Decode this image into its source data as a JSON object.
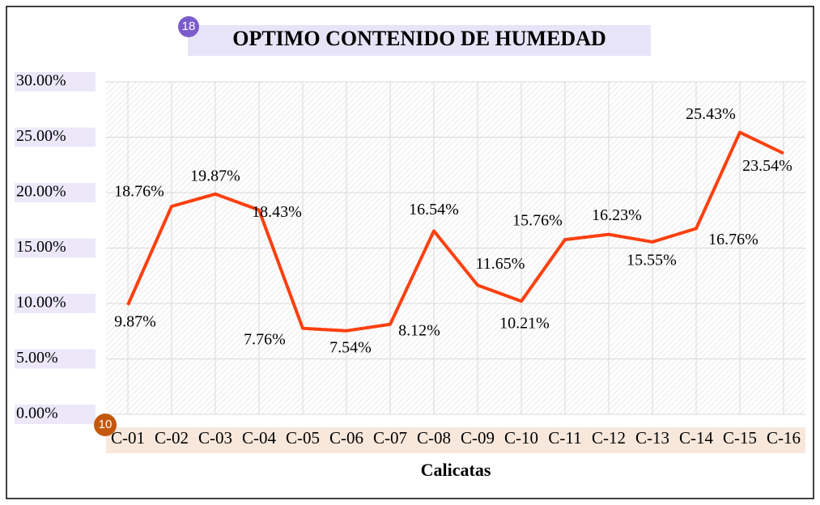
{
  "chart_data": {
    "type": "line",
    "title": "OPTIMO CONTENIDO DE HUMEDAD",
    "x_label": "Calicatas",
    "categories": [
      "C-01",
      "C-02",
      "C-03",
      "C-04",
      "C-05",
      "C-06",
      "C-07",
      "C-08",
      "C-09",
      "C-10",
      "C-11",
      "C-12",
      "C-13",
      "C-14",
      "C-15",
      "C-16"
    ],
    "values": [
      9.87,
      18.76,
      19.87,
      18.43,
      7.76,
      7.54,
      8.12,
      16.54,
      11.65,
      10.21,
      15.76,
      16.23,
      15.55,
      16.76,
      25.43,
      23.54
    ],
    "value_labels": [
      "9.87%",
      "18.76%",
      "19.87%",
      "18.43%",
      "7.76%",
      "7.54%",
      "8.12%",
      "16.54%",
      "11.65%",
      "10.21%",
      "15.76%",
      "16.23%",
      "15.55%",
      "16.76%",
      "25.43%",
      "23.54%"
    ],
    "color": "#fc4010",
    "ylim": [
      0,
      30
    ],
    "yticks": [
      {
        "value": 0,
        "label": "0.00%"
      },
      {
        "value": 5,
        "label": "5.00%"
      },
      {
        "value": 10,
        "label": "10.00%"
      },
      {
        "value": 15,
        "label": "15.00%"
      },
      {
        "value": 20,
        "label": "20.00%"
      },
      {
        "value": 25,
        "label": "25.00%"
      },
      {
        "value": 30,
        "label": "30.00%"
      }
    ],
    "grid": true
  },
  "badges": [
    18,
    10
  ]
}
